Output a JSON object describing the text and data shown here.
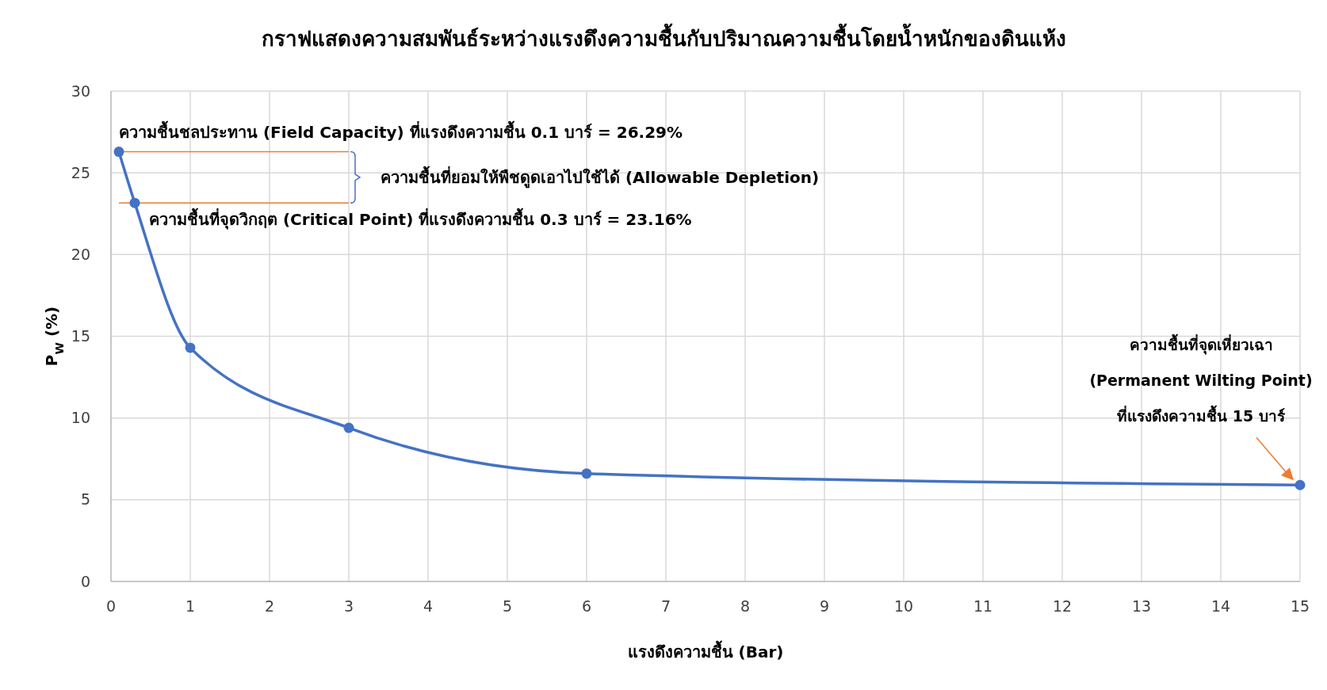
{
  "chart_data": {
    "type": "line",
    "title": "กราฟแสดงความสมพันธ์ระหว่างแรงดึงความชื้นกับปริมาณความชื้นโดยน้ำหนักของดินแห้ง",
    "xlabel": "แรงดึงความชื้น (Bar)",
    "ylabel": "P$_{W}$ (%)",
    "x": [
      0.1,
      0.3,
      1,
      3,
      6,
      15
    ],
    "series": [
      {
        "color": "#4472c4",
        "values": [
          26.29,
          23.16,
          14.3,
          9.4,
          6.6,
          5.9
        ]
      }
    ],
    "marker": "circle",
    "xlim": [
      0,
      15
    ],
    "xticks": [
      0,
      1,
      2,
      3,
      4,
      5,
      6,
      7,
      8,
      9,
      10,
      11,
      12,
      13,
      14,
      15
    ],
    "ylim": [
      0,
      30
    ],
    "yticks": [
      0,
      5,
      10,
      15,
      20,
      25,
      30
    ],
    "grid": true,
    "ref_lines": [
      {
        "axis": "y",
        "value": 26.29,
        "color": "#ed7d31"
      },
      {
        "axis": "y",
        "value": 23.16,
        "color": "#ed7d31"
      }
    ],
    "annotations": [
      {
        "text": "ความชื้นชลประทาน (Field Capacity) ที่แรงดึงความชื้น 0.1 บาร์ = 26.29%",
        "x": 0.1,
        "y": 26.29
      },
      {
        "text": "ความชื้นที่จุดวิกฤต (Critical Point) ที่แรงดึงความชื้น 0.3 บาร์ = 23.16%",
        "x": 0.3,
        "y": 23.16
      },
      "ความชื้นที่ยอมให้พืชดูดเอาไปใช้ได้ (Allowable Depletion)",
      "ความชื้นที่จุดเหี่ยวเฉา\n(Permanent Wilting Point)\nที่แรงดึงความชื้น 15 บาร์"
    ]
  }
}
